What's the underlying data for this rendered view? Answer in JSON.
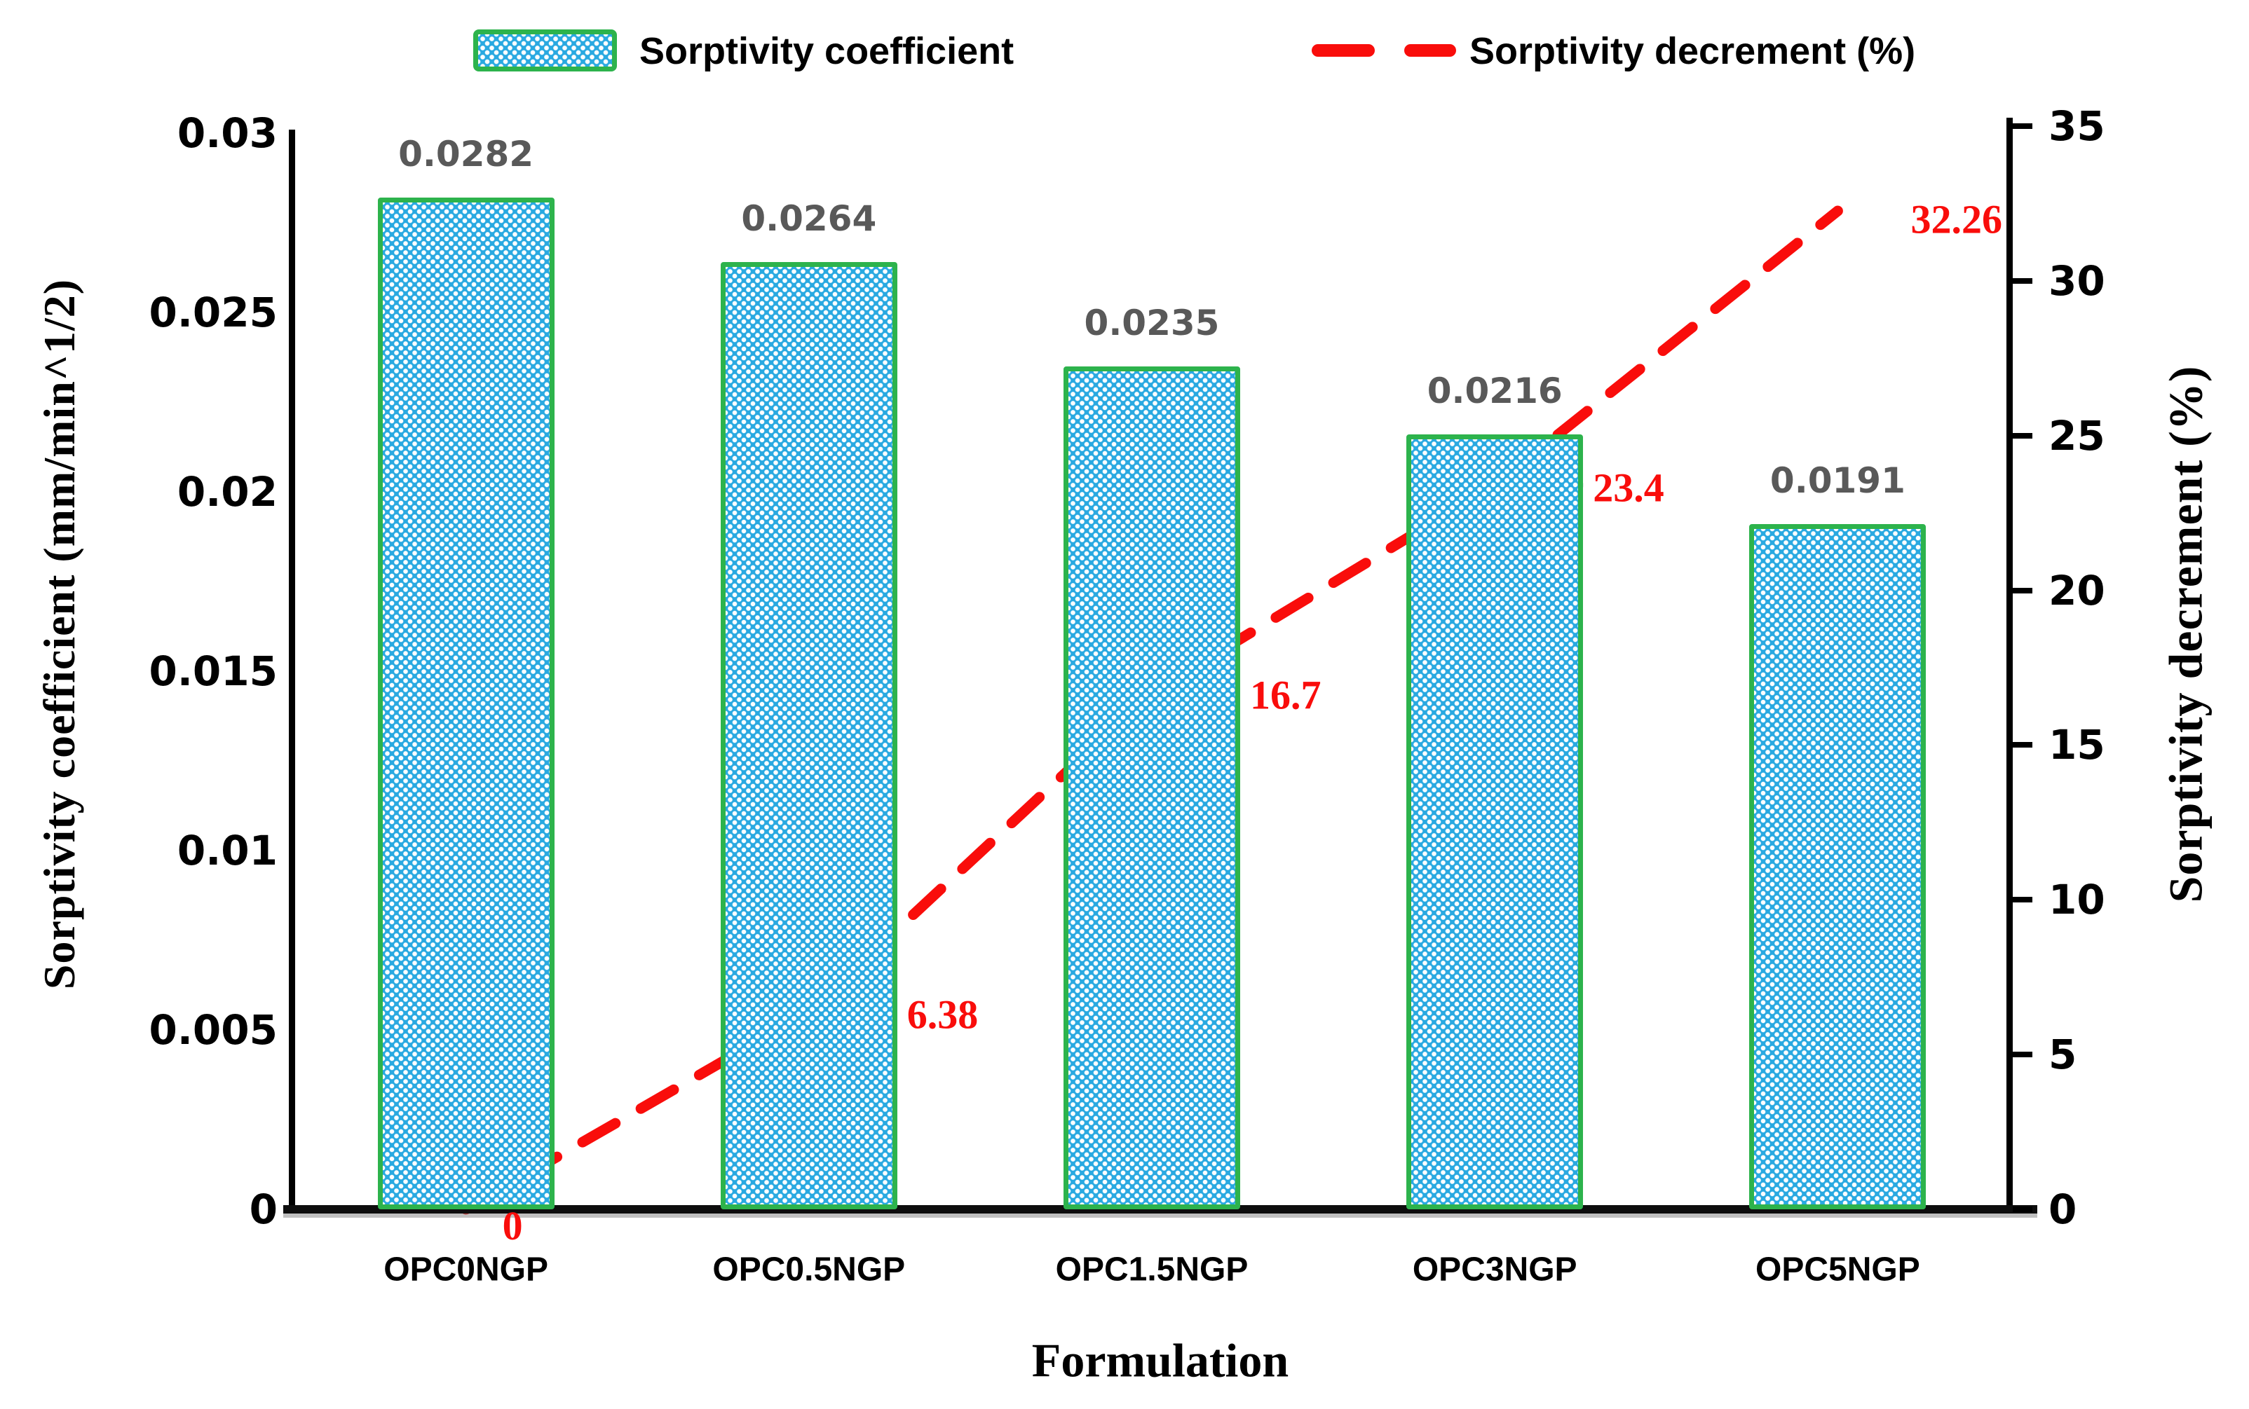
{
  "legend": {
    "bar_label": "Sorptivity coefficient",
    "line_label": "Sorptivity decrement (%)"
  },
  "axes": {
    "left": {
      "title": "Sorptivity coefficient (mm/min^1/2)",
      "tick_labels": [
        "0.03",
        "0.025",
        "0.02",
        "0.015",
        "0.01",
        "0.005",
        "0"
      ],
      "tick_values": [
        0.03,
        0.025,
        0.02,
        0.015,
        0.01,
        0.005,
        0
      ]
    },
    "right": {
      "title": "Sorptivity decrement (%)",
      "tick_labels": [
        "35",
        "30",
        "25",
        "20",
        "15",
        "10",
        "5",
        "0"
      ],
      "tick_values": [
        35,
        30,
        25,
        20,
        15,
        10,
        5,
        0
      ]
    },
    "x": {
      "title": "Formulation"
    }
  },
  "chart_data": {
    "type": "bar",
    "categories": [
      "OPC0NGP",
      "OPC0.5NGP",
      "OPC1.5NGP",
      "OPC3NGP",
      "OPC5NGP"
    ],
    "series": [
      {
        "name": "Sorptivity coefficient",
        "type": "bar",
        "axis": "left",
        "values": [
          0.0282,
          0.0264,
          0.0235,
          0.0216,
          0.0191
        ],
        "labels": [
          "0.0282",
          "0.0264",
          "0.0235",
          "0.0216",
          "0.0191"
        ]
      },
      {
        "name": "Sorptivity decrement (%)",
        "type": "line",
        "axis": "right",
        "values": [
          0,
          6.38,
          16.7,
          23.4,
          32.26
        ],
        "labels": [
          "0",
          "6.38",
          "16.7",
          "23.4",
          "32.26"
        ]
      }
    ],
    "title": "",
    "xlabel": "Formulation",
    "ylabel_left": "Sorptivity coefficient (mm/min^1/2)",
    "ylabel_right": "Sorptivity decrement (%)",
    "ylim_left": [
      0,
      0.03
    ],
    "ylim_right": [
      0,
      35
    ],
    "grid": false,
    "legend_position": "top"
  },
  "colors": {
    "bar_fill": "#29a9e1",
    "bar_border": "#2db34c",
    "line": "#f90d0b",
    "bar_label": "#595959",
    "leader": "#a6a6a6"
  }
}
